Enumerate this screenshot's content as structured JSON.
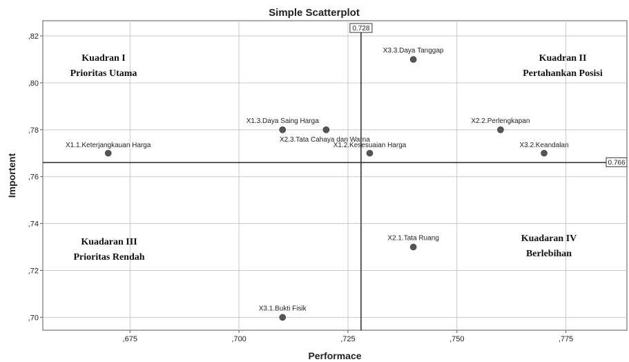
{
  "chart_data": {
    "type": "scatter",
    "title": "Simple Scatterplot",
    "xlabel": "Performace",
    "ylabel": "Importent",
    "xlim": [
      0.655,
      0.789
    ],
    "ylim": [
      0.6945,
      0.8265
    ],
    "x_ticks": [
      {
        "value": 0.675,
        "label": ",675"
      },
      {
        "value": 0.7,
        "label": ",700"
      },
      {
        "value": 0.725,
        "label": ",725"
      },
      {
        "value": 0.75,
        "label": ",750"
      },
      {
        "value": 0.775,
        "label": ",775"
      }
    ],
    "y_ticks": [
      {
        "value": 0.7,
        "label": ",70"
      },
      {
        "value": 0.72,
        "label": ",72"
      },
      {
        "value": 0.74,
        "label": ",74"
      },
      {
        "value": 0.76,
        "label": ",76"
      },
      {
        "value": 0.78,
        "label": ",78"
      },
      {
        "value": 0.8,
        "label": ",80"
      },
      {
        "value": 0.82,
        "label": ",82"
      }
    ],
    "grid": true,
    "reference_lines": {
      "x": {
        "value": 0.728,
        "label": "0.728"
      },
      "y": {
        "value": 0.766,
        "label": "0.766"
      }
    },
    "points": [
      {
        "label": "X1.1.Keterjangkauan Harga",
        "x": 0.67,
        "y": 0.77
      },
      {
        "label": "X1.2.Kesesuaian Harga",
        "x": 0.73,
        "y": 0.77
      },
      {
        "label": "X1.3.Daya Saing Harga",
        "x": 0.71,
        "y": 0.78
      },
      {
        "label": "X2.3.Tata Cahaya dan Warna",
        "x": 0.72,
        "y": 0.78
      },
      {
        "label": "X2.2.Perlengkapan",
        "x": 0.76,
        "y": 0.78
      },
      {
        "label": "X3.2.Keandalan",
        "x": 0.77,
        "y": 0.77
      },
      {
        "label": "X3.3.Daya Tanggap",
        "x": 0.74,
        "y": 0.81
      },
      {
        "label": "X2.1.Tata Ruang",
        "x": 0.74,
        "y": 0.73
      },
      {
        "label": "X3.1.Bukti Fisik",
        "x": 0.71,
        "y": 0.7
      }
    ],
    "quadrants": [
      {
        "lines": [
          "Kuadran I",
          "Prioritas Utama"
        ]
      },
      {
        "lines": [
          "Kuadran II",
          "Pertahankan Posisi"
        ]
      },
      {
        "lines": [
          "Kuadaran III",
          "Prioritas Rendah"
        ]
      },
      {
        "lines": [
          "Kuadaran IV",
          "Berlebihan"
        ]
      }
    ],
    "colors": {
      "point": "#555555",
      "grid": "#c8c8c8",
      "ref_line": "#333333",
      "frame": "#333333"
    }
  }
}
